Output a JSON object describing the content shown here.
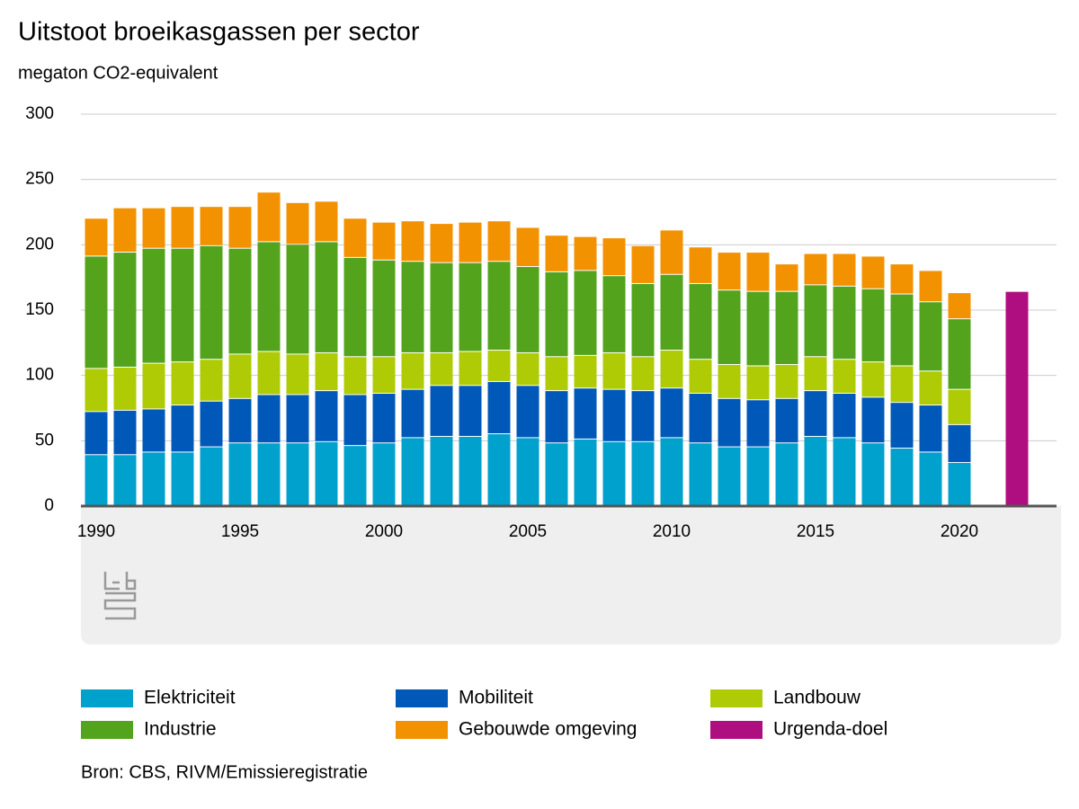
{
  "chart_data": {
    "type": "stacked_bar",
    "title": "Uitstoot broeikasgassen per sector",
    "subtitle": "megaton CO2-equivalent",
    "source": "Bron: CBS, RIVM/Emissieregistratie",
    "categories": [
      1990,
      null,
      null,
      null,
      null,
      1995,
      null,
      null,
      null,
      null,
      2000,
      null,
      null,
      null,
      null,
      2005,
      null,
      null,
      null,
      null,
      2010,
      null,
      null,
      null,
      null,
      2015,
      null,
      null,
      null,
      null,
      2020,
      null,
      null
    ],
    "series": [
      {
        "name": "Elektriciteit",
        "color": "#00a1cd",
        "values": [
          39,
          39,
          41,
          41,
          45,
          48,
          48,
          48,
          49,
          46,
          48,
          52,
          53,
          53,
          55,
          52,
          48,
          51,
          49,
          49,
          52,
          48,
          45,
          45,
          48,
          53,
          52,
          48,
          44,
          41,
          33,
          null,
          null
        ]
      },
      {
        "name": "Mobiliteit",
        "color": "#0058b8",
        "values": [
          33,
          34,
          33,
          36,
          35,
          34,
          37,
          37,
          39,
          39,
          38,
          37,
          39,
          39,
          40,
          40,
          40,
          39,
          40,
          39,
          38,
          38,
          37,
          36,
          34,
          35,
          34,
          35,
          35,
          36,
          29,
          null,
          null
        ]
      },
      {
        "name": "Landbouw",
        "color": "#afcb05",
        "values": [
          33,
          33,
          35,
          33,
          32,
          34,
          33,
          31,
          29,
          29,
          28,
          28,
          25,
          26,
          24,
          25,
          26,
          25,
          28,
          26,
          29,
          26,
          26,
          26,
          26,
          26,
          26,
          27,
          28,
          26,
          27,
          null,
          null
        ]
      },
      {
        "name": "Industrie",
        "color": "#53a31d",
        "values": [
          86,
          88,
          88,
          87,
          87,
          81,
          84,
          84,
          85,
          76,
          74,
          70,
          69,
          68,
          68,
          66,
          65,
          65,
          59,
          56,
          58,
          58,
          57,
          57,
          56,
          55,
          56,
          56,
          55,
          53,
          54,
          null,
          null
        ]
      },
      {
        "name": "Gebouwde omgeving",
        "color": "#f39200",
        "values": [
          29,
          34,
          31,
          32,
          30,
          32,
          38,
          32,
          31,
          30,
          29,
          31,
          30,
          31,
          31,
          30,
          28,
          26,
          29,
          29,
          34,
          28,
          29,
          30,
          21,
          24,
          25,
          25,
          23,
          24,
          20,
          null,
          null
        ]
      },
      {
        "name": "Urgenda-doel",
        "color": "#af0e80",
        "values": [
          null,
          null,
          null,
          null,
          null,
          null,
          null,
          null,
          null,
          null,
          null,
          null,
          null,
          null,
          null,
          null,
          null,
          null,
          null,
          null,
          null,
          null,
          null,
          null,
          null,
          null,
          null,
          null,
          null,
          null,
          null,
          null,
          164
        ]
      }
    ],
    "ylim": [
      0,
      300
    ],
    "yticks": [
      0,
      50,
      100,
      150,
      200,
      250,
      300
    ],
    "grid": true
  }
}
